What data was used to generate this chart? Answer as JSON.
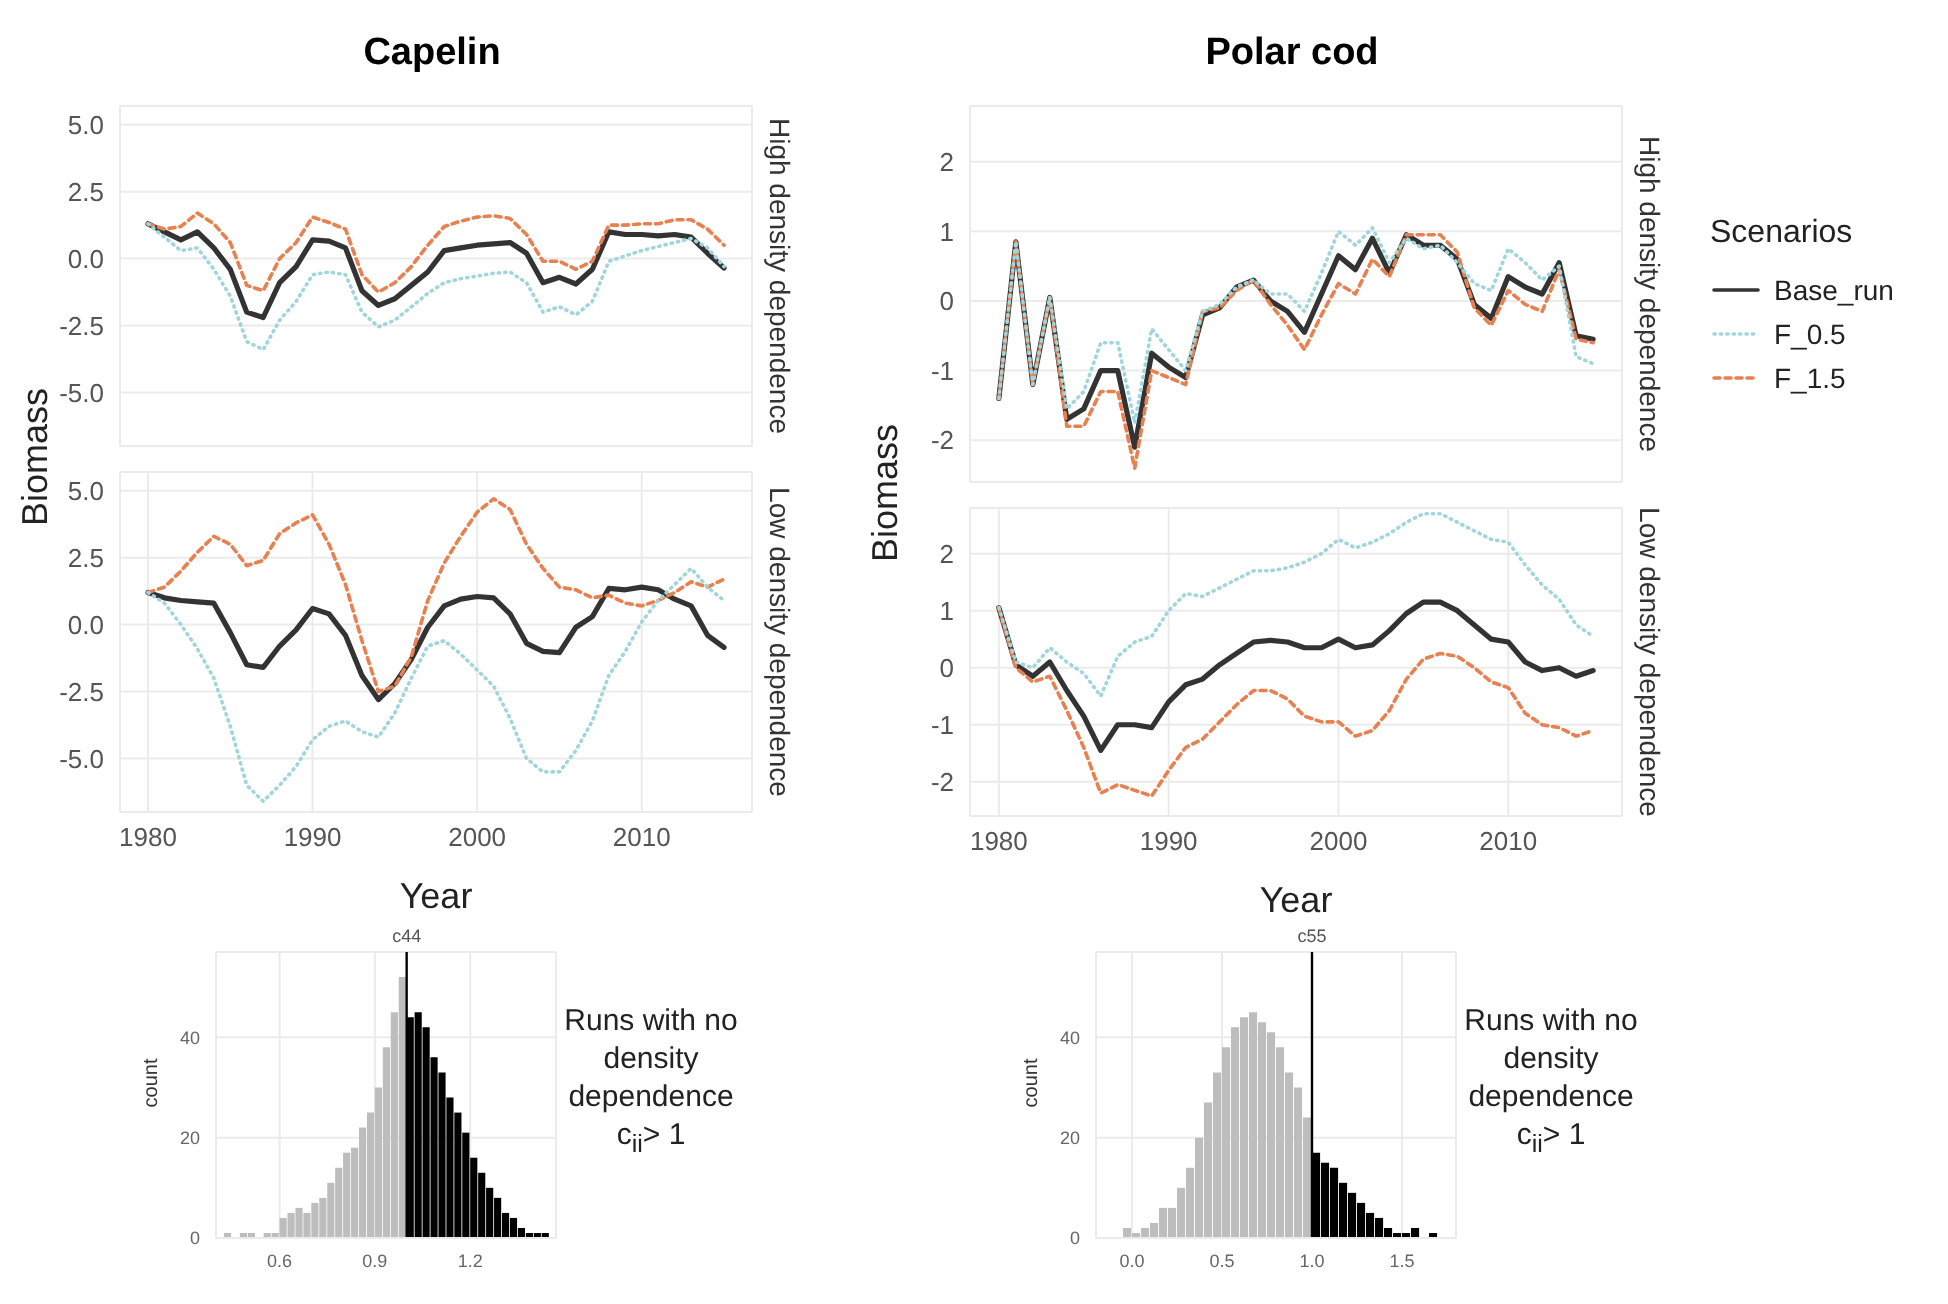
{
  "chart_data": [
    {
      "type": "line",
      "title": "Capelin",
      "subtitle": "High density dependence",
      "ylabel": "Biomass",
      "tick_labels": "y",
      "grid": true,
      "xlim": [
        1978.3,
        2016.7
      ],
      "xticks": [
        1980,
        1990,
        2000,
        2010
      ],
      "ylim": [
        -7,
        5.7
      ],
      "yticks": [
        {
          "value": -5,
          "label": "-5.0"
        },
        -2.5,
        {
          "value": 0,
          "label": "0.0"
        },
        2.5,
        {
          "value": 5,
          "label": "5.0"
        }
      ],
      "x": [
        1980,
        1981,
        1982,
        1983,
        1984,
        1985,
        1986,
        1987,
        1988,
        1989,
        1990,
        1991,
        1992,
        1993,
        1994,
        1995,
        1996,
        1997,
        1998,
        1999,
        2000,
        2001,
        2002,
        2003,
        2004,
        2005,
        2006,
        2007,
        2008,
        2009,
        2010,
        2011,
        2012,
        2013,
        2014,
        2015
      ],
      "series": [
        {
          "color": "#333333",
          "line_style": "solid",
          "values": [
            1.3,
            1.0,
            0.7,
            1.0,
            0.4,
            -0.4,
            -2.0,
            -2.2,
            -0.9,
            -0.3,
            0.7,
            0.65,
            0.4,
            -1.2,
            -1.75,
            -1.5,
            -1.0,
            -0.5,
            0.3,
            0.4,
            0.5,
            0.55,
            0.6,
            0.2,
            -0.9,
            -0.7,
            -0.95,
            -0.4,
            1.0,
            0.9,
            0.9,
            0.85,
            0.9,
            0.8,
            0.2,
            -0.35
          ]
        },
        {
          "color": "#9fd6de",
          "line_style": "dotted",
          "values": [
            1.3,
            0.8,
            0.3,
            0.4,
            -0.4,
            -1.4,
            -3.1,
            -3.4,
            -2.3,
            -1.6,
            -0.6,
            -0.5,
            -0.6,
            -2.0,
            -2.55,
            -2.3,
            -1.8,
            -1.3,
            -0.9,
            -0.75,
            -0.65,
            -0.55,
            -0.5,
            -0.9,
            -2.0,
            -1.8,
            -2.1,
            -1.6,
            -0.1,
            0.1,
            0.3,
            0.45,
            0.6,
            0.75,
            0.4,
            -0.3
          ]
        },
        {
          "color": "#e8804f",
          "line_style": "dashed",
          "values": [
            1.3,
            1.1,
            1.2,
            1.7,
            1.3,
            0.6,
            -1.0,
            -1.2,
            0.0,
            0.6,
            1.55,
            1.35,
            1.1,
            -0.6,
            -1.25,
            -0.9,
            -0.3,
            0.5,
            1.2,
            1.4,
            1.55,
            1.6,
            1.5,
            0.9,
            -0.1,
            -0.1,
            -0.4,
            -0.1,
            1.25,
            1.25,
            1.3,
            1.3,
            1.45,
            1.45,
            1.1,
            0.5
          ]
        }
      ]
    },
    {
      "type": "line",
      "subtitle": "Low density dependence",
      "xlabel": "Year",
      "grid": true,
      "xlim": [
        1978.3,
        2016.7
      ],
      "xticks": [
        1980,
        1990,
        2000,
        2010
      ],
      "ylim": [
        -7,
        5.7
      ],
      "yticks": [
        {
          "value": -5,
          "label": "-5.0"
        },
        -2.5,
        {
          "value": 0,
          "label": "0.0"
        },
        2.5,
        {
          "value": 5,
          "label": "5.0"
        }
      ],
      "x": [
        1980,
        1981,
        1982,
        1983,
        1984,
        1985,
        1986,
        1987,
        1988,
        1989,
        1990,
        1991,
        1992,
        1993,
        1994,
        1995,
        1996,
        1997,
        1998,
        1999,
        2000,
        2001,
        2002,
        2003,
        2004,
        2005,
        2006,
        2007,
        2008,
        2009,
        2010,
        2011,
        2012,
        2013,
        2014,
        2015
      ],
      "series": [
        {
          "color": "#333333",
          "line_style": "solid",
          "values": [
            1.2,
            1.0,
            0.9,
            0.85,
            0.8,
            -0.3,
            -1.5,
            -1.6,
            -0.8,
            -0.2,
            0.6,
            0.4,
            -0.4,
            -1.9,
            -2.8,
            -2.2,
            -1.3,
            -0.1,
            0.7,
            0.95,
            1.05,
            1.0,
            0.4,
            -0.7,
            -1.0,
            -1.05,
            -0.1,
            0.3,
            1.35,
            1.3,
            1.4,
            1.3,
            0.95,
            0.7,
            -0.4,
            -0.85
          ]
        },
        {
          "color": "#9fd6de",
          "line_style": "dotted",
          "values": [
            1.2,
            0.8,
            0.0,
            -0.9,
            -2.0,
            -3.8,
            -6.0,
            -6.6,
            -6.0,
            -5.3,
            -4.3,
            -3.8,
            -3.6,
            -4.0,
            -4.2,
            -3.3,
            -2.0,
            -0.8,
            -0.6,
            -1.1,
            -1.7,
            -2.3,
            -3.5,
            -5.0,
            -5.5,
            -5.5,
            -4.7,
            -3.6,
            -1.9,
            -1.0,
            0.1,
            0.9,
            1.5,
            2.1,
            1.4,
            0.9
          ]
        },
        {
          "color": "#e8804f",
          "line_style": "dashed",
          "values": [
            1.2,
            1.4,
            2.0,
            2.7,
            3.3,
            3.0,
            2.2,
            2.4,
            3.4,
            3.8,
            4.1,
            3.0,
            1.5,
            -0.6,
            -2.5,
            -2.3,
            -1.2,
            0.9,
            2.3,
            3.3,
            4.2,
            4.7,
            4.3,
            3.0,
            2.1,
            1.4,
            1.3,
            1.0,
            1.1,
            0.8,
            0.7,
            0.9,
            1.2,
            1.6,
            1.4,
            1.7
          ]
        }
      ]
    },
    {
      "type": "line",
      "title": "Polar cod",
      "subtitle": "High density dependence",
      "ylabel": "Biomass",
      "legend_title": "Scenarios",
      "legend": "right",
      "tick_labels": "y",
      "grid": true,
      "xlim": [
        1978.3,
        2016.7
      ],
      "xticks": [
        1980,
        1990,
        2000,
        2010
      ],
      "ylim": [
        -2.6,
        2.8
      ],
      "yticks": [
        -2,
        -1,
        0,
        1,
        2
      ],
      "x": [
        1980,
        1981,
        1982,
        1983,
        1984,
        1985,
        1986,
        1987,
        1988,
        1989,
        1990,
        1991,
        1992,
        1993,
        1994,
        1995,
        1996,
        1997,
        1998,
        1999,
        2000,
        2001,
        2002,
        2003,
        2004,
        2005,
        2006,
        2007,
        2008,
        2009,
        2010,
        2011,
        2012,
        2013,
        2014,
        2015
      ],
      "series": [
        {
          "name": "Base_run",
          "color": "#333333",
          "line_style": "solid",
          "values": [
            -1.4,
            0.85,
            -1.2,
            0.05,
            -1.7,
            -1.55,
            -1.0,
            -1.0,
            -2.1,
            -0.75,
            -0.95,
            -1.1,
            -0.2,
            -0.1,
            0.2,
            0.3,
            0.0,
            -0.15,
            -0.45,
            0.1,
            0.65,
            0.45,
            0.9,
            0.4,
            0.95,
            0.8,
            0.8,
            0.6,
            -0.05,
            -0.25,
            0.35,
            0.2,
            0.1,
            0.55,
            -0.5,
            -0.55
          ]
        },
        {
          "name": "F_0.5",
          "color": "#9fd6de",
          "line_style": "dotted",
          "values": [
            -1.4,
            0.85,
            -1.2,
            0.05,
            -1.55,
            -1.3,
            -0.6,
            -0.6,
            -1.75,
            -0.4,
            -0.7,
            -1.0,
            -0.15,
            -0.05,
            0.2,
            0.3,
            0.1,
            0.1,
            -0.15,
            0.4,
            1.0,
            0.8,
            1.05,
            0.55,
            0.9,
            0.75,
            0.8,
            0.55,
            0.25,
            0.15,
            0.75,
            0.55,
            0.3,
            0.5,
            -0.8,
            -0.9
          ]
        },
        {
          "name": "F_1.5",
          "color": "#e8804f",
          "line_style": "dashed",
          "values": [
            -1.4,
            0.85,
            -1.2,
            0.05,
            -1.8,
            -1.8,
            -1.3,
            -1.3,
            -2.4,
            -1.0,
            -1.1,
            -1.2,
            -0.15,
            -0.1,
            0.15,
            0.3,
            -0.05,
            -0.35,
            -0.7,
            -0.2,
            0.25,
            0.1,
            0.6,
            0.35,
            0.95,
            0.95,
            0.95,
            0.7,
            -0.1,
            -0.35,
            0.15,
            -0.05,
            -0.15,
            0.45,
            -0.55,
            -0.6
          ]
        }
      ]
    },
    {
      "type": "line",
      "subtitle": "Low density dependence",
      "xlabel": "Year",
      "grid": true,
      "xlim": [
        1978.3,
        2016.7
      ],
      "xticks": [
        1980,
        1990,
        2000,
        2010
      ],
      "ylim": [
        -2.6,
        2.8
      ],
      "yticks": [
        -2,
        -1,
        0,
        1,
        2
      ],
      "x": [
        1980,
        1981,
        1982,
        1983,
        1984,
        1985,
        1986,
        1987,
        1988,
        1989,
        1990,
        1991,
        1992,
        1993,
        1994,
        1995,
        1996,
        1997,
        1998,
        1999,
        2000,
        2001,
        2002,
        2003,
        2004,
        2005,
        2006,
        2007,
        2008,
        2009,
        2010,
        2011,
        2012,
        2013,
        2014,
        2015
      ],
      "series": [
        {
          "color": "#333333",
          "line_style": "solid",
          "values": [
            1.05,
            0.05,
            -0.15,
            0.1,
            -0.4,
            -0.85,
            -1.45,
            -1.0,
            -1.0,
            -1.05,
            -0.6,
            -0.3,
            -0.2,
            0.05,
            0.25,
            0.45,
            0.48,
            0.45,
            0.35,
            0.35,
            0.5,
            0.35,
            0.4,
            0.65,
            0.95,
            1.15,
            1.15,
            1.0,
            0.75,
            0.5,
            0.45,
            0.1,
            -0.05,
            0.0,
            -0.15,
            -0.05
          ]
        },
        {
          "color": "#9fd6de",
          "line_style": "dotted",
          "values": [
            1.05,
            0.1,
            0.0,
            0.35,
            0.1,
            -0.1,
            -0.5,
            0.2,
            0.45,
            0.55,
            1.0,
            1.3,
            1.25,
            1.4,
            1.55,
            1.7,
            1.7,
            1.75,
            1.85,
            2.0,
            2.25,
            2.1,
            2.2,
            2.35,
            2.55,
            2.7,
            2.7,
            2.55,
            2.4,
            2.25,
            2.2,
            1.8,
            1.45,
            1.2,
            0.75,
            0.55
          ]
        },
        {
          "color": "#e8804f",
          "line_style": "dashed",
          "values": [
            1.05,
            0.0,
            -0.25,
            -0.15,
            -0.75,
            -1.4,
            -2.2,
            -2.05,
            -2.15,
            -2.25,
            -1.8,
            -1.4,
            -1.25,
            -0.95,
            -0.65,
            -0.4,
            -0.4,
            -0.55,
            -0.85,
            -0.95,
            -0.95,
            -1.2,
            -1.1,
            -0.75,
            -0.2,
            0.15,
            0.25,
            0.2,
            0.0,
            -0.25,
            -0.35,
            -0.8,
            -1.0,
            -1.05,
            -1.2,
            -1.1
          ]
        }
      ]
    },
    {
      "type": "histogram",
      "ylabel": "count",
      "grid": true,
      "xlim": [
        0.4,
        1.47
      ],
      "xticks": [
        0.6,
        0.9,
        1.2
      ],
      "ylim": [
        0,
        57
      ],
      "yticks": [
        0,
        20,
        40
      ],
      "bins": [
        0.425,
        0.45,
        0.475,
        0.5,
        0.525,
        0.55,
        0.575,
        0.6,
        0.625,
        0.65,
        0.675,
        0.7,
        0.725,
        0.75,
        0.775,
        0.8,
        0.825,
        0.85,
        0.875,
        0.9,
        0.925,
        0.95,
        0.975,
        1.0,
        1.025,
        1.05,
        1.075,
        1.1,
        1.125,
        1.15,
        1.175,
        1.2,
        1.225,
        1.25,
        1.275,
        1.3,
        1.325,
        1.35,
        1.375,
        1.4,
        1.425,
        1.45
      ],
      "values": [
        1,
        0,
        1,
        1,
        0,
        1,
        1,
        4,
        5,
        6,
        5,
        7,
        8,
        11,
        14,
        17,
        18,
        22,
        25,
        30,
        38,
        45,
        52,
        44,
        45,
        42,
        36,
        33,
        28,
        25,
        21,
        16,
        13,
        10,
        8,
        5,
        4,
        2,
        1,
        1,
        1
      ],
      "colors": [
        "#bdbdbd",
        "#bdbdbd",
        "#bdbdbd",
        "#bdbdbd",
        "#bdbdbd",
        "#bdbdbd",
        "#bdbdbd",
        "#bdbdbd",
        "#bdbdbd",
        "#bdbdbd",
        "#bdbdbd",
        "#bdbdbd",
        "#bdbdbd",
        "#bdbdbd",
        "#bdbdbd",
        "#bdbdbd",
        "#bdbdbd",
        "#bdbdbd",
        "#bdbdbd",
        "#bdbdbd",
        "#bdbdbd",
        "#bdbdbd",
        "#bdbdbd",
        "#000000",
        "#000000",
        "#000000",
        "#000000",
        "#000000",
        "#000000",
        "#000000",
        "#000000",
        "#000000",
        "#000000",
        "#000000",
        "#000000",
        "#000000",
        "#000000",
        "#000000",
        "#000000",
        "#000000",
        "#000000"
      ],
      "ref_lines": [
        {
          "axis": "x",
          "value": 1,
          "label": "c44",
          "color": "#000000"
        }
      ],
      "annotations": [
        "Runs with no density dependence",
        "c$_{ii}$> 1"
      ]
    },
    {
      "type": "histogram",
      "ylabel": "count",
      "grid": true,
      "xlim": [
        -0.2,
        1.8
      ],
      "xticks": [
        {
          "value": 0,
          "label": "0.0"
        },
        0.5,
        {
          "value": 1,
          "label": "1.0"
        },
        1.5
      ],
      "ylim": [
        0,
        57
      ],
      "yticks": [
        0,
        20,
        40
      ],
      "bins": [
        -0.05,
        0.0,
        0.05,
        0.1,
        0.15,
        0.2,
        0.25,
        0.3,
        0.35,
        0.4,
        0.45,
        0.5,
        0.55,
        0.6,
        0.65,
        0.7,
        0.75,
        0.8,
        0.85,
        0.9,
        0.95,
        1.0,
        1.05,
        1.1,
        1.15,
        1.2,
        1.25,
        1.3,
        1.35,
        1.4,
        1.45,
        1.5,
        1.55,
        1.6,
        1.65,
        1.7
      ],
      "values": [
        2,
        1,
        2,
        3,
        6,
        6,
        10,
        14,
        20,
        27,
        33,
        38,
        42,
        44,
        45,
        43,
        41,
        38,
        33,
        30,
        24,
        17,
        15,
        14,
        11,
        9,
        7,
        5,
        4,
        2,
        1,
        1,
        2,
        0,
        1
      ],
      "colors": [
        "#bdbdbd",
        "#bdbdbd",
        "#bdbdbd",
        "#bdbdbd",
        "#bdbdbd",
        "#bdbdbd",
        "#bdbdbd",
        "#bdbdbd",
        "#bdbdbd",
        "#bdbdbd",
        "#bdbdbd",
        "#bdbdbd",
        "#bdbdbd",
        "#bdbdbd",
        "#bdbdbd",
        "#bdbdbd",
        "#bdbdbd",
        "#bdbdbd",
        "#bdbdbd",
        "#bdbdbd",
        "#bdbdbd",
        "#000000",
        "#000000",
        "#000000",
        "#000000",
        "#000000",
        "#000000",
        "#000000",
        "#000000",
        "#000000",
        "#000000",
        "#000000",
        "#000000",
        "#000000",
        "#000000"
      ],
      "ref_lines": [
        {
          "axis": "x",
          "value": 1,
          "label": "c55",
          "color": "#000000"
        }
      ],
      "annotations": [
        "Runs with no density dependence",
        "c$_{ii}$> 1"
      ]
    }
  ]
}
